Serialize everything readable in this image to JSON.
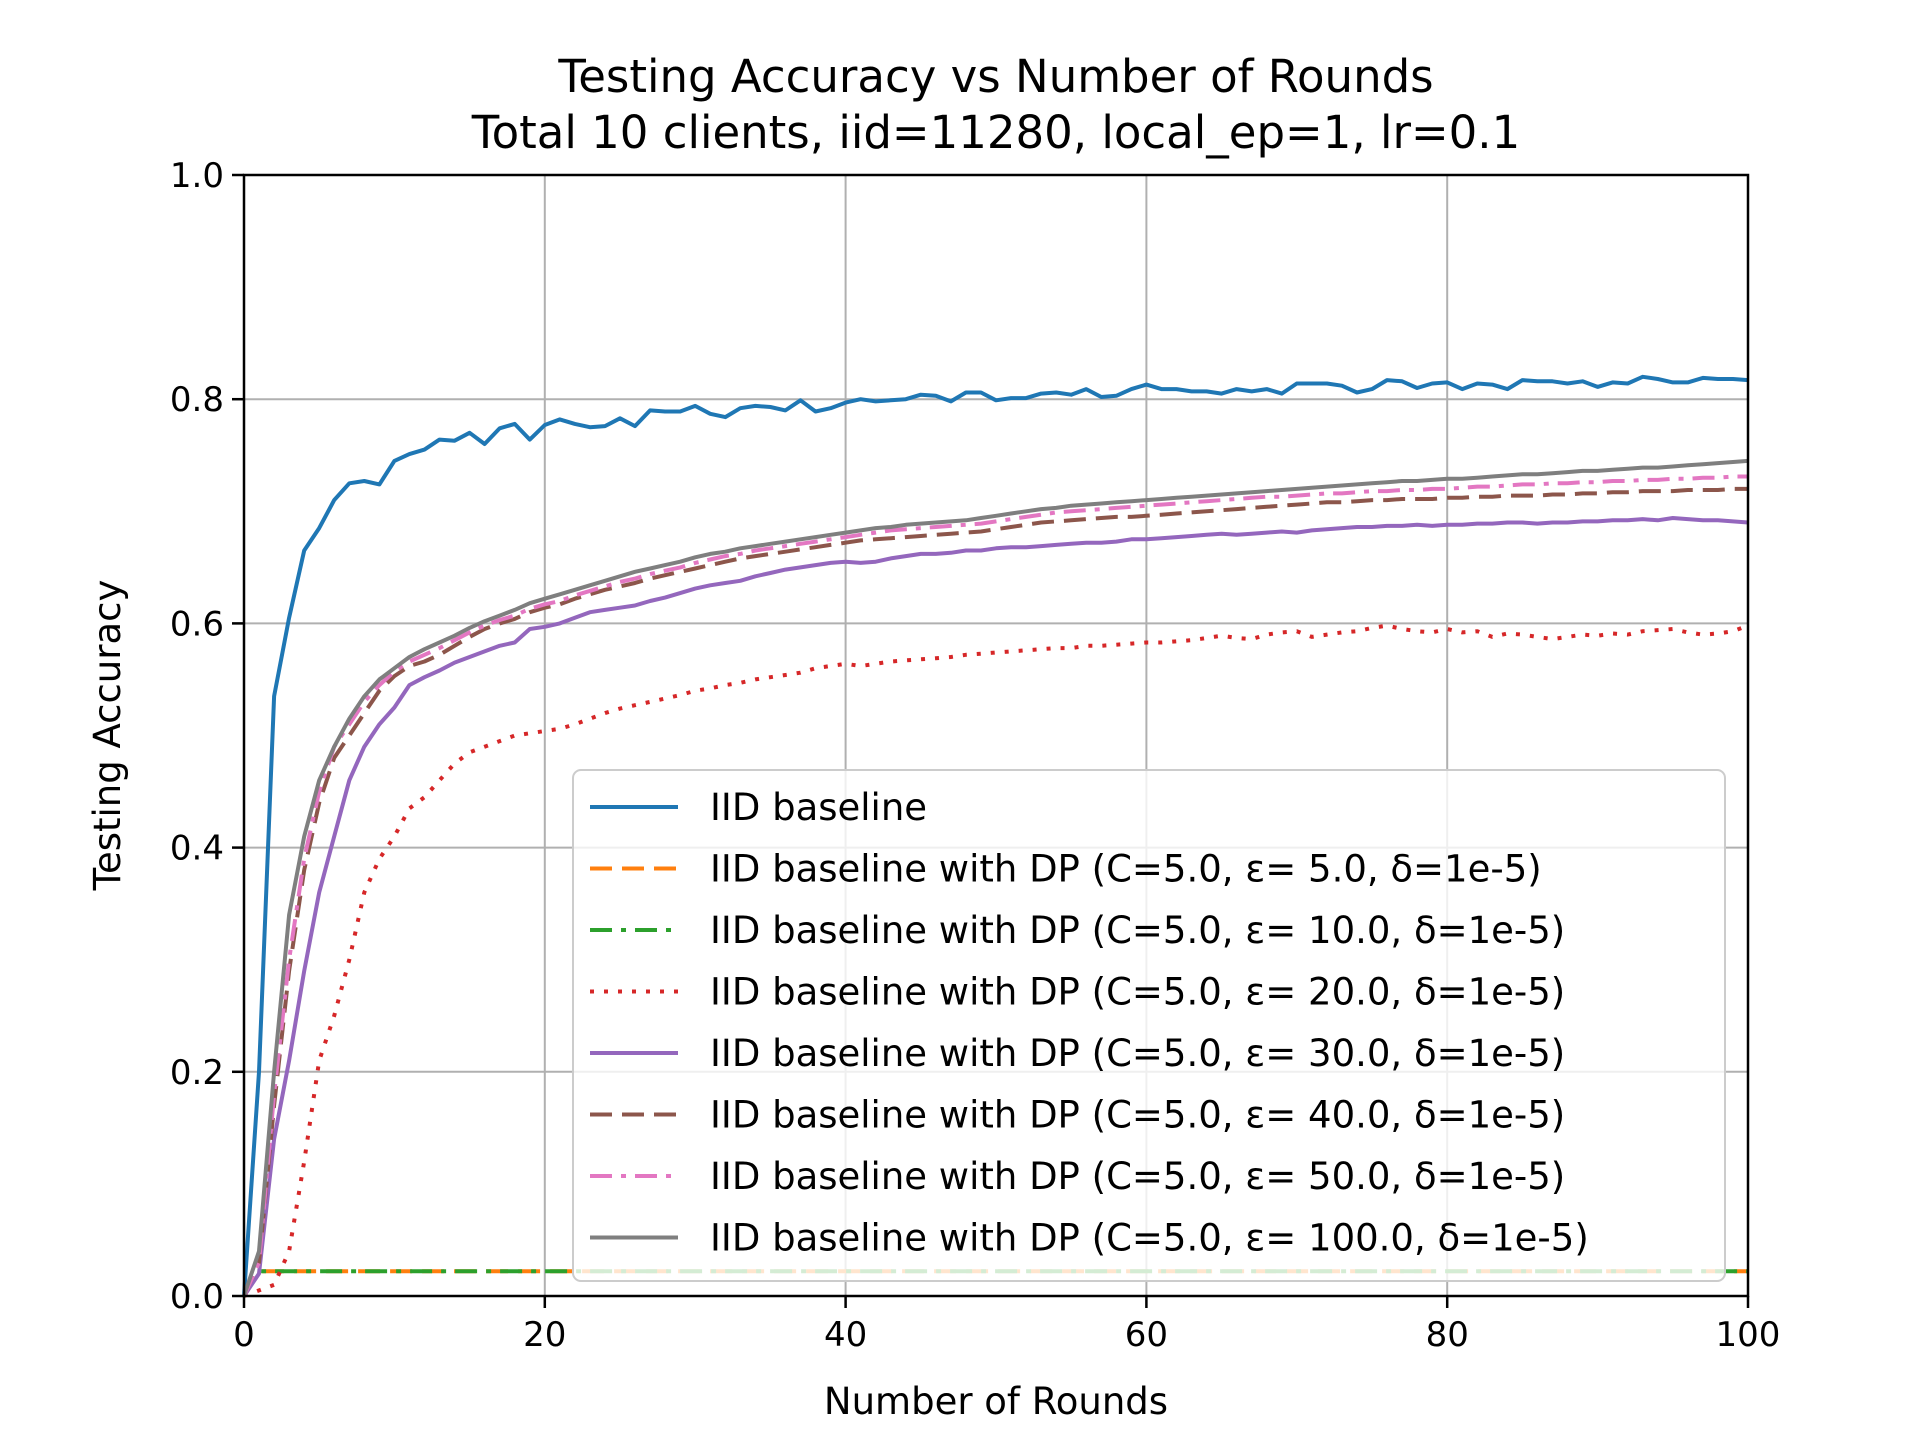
{
  "chart_data": {
    "type": "line",
    "title": "Testing Accuracy vs Number of Rounds",
    "subtitle": "Total 10 clients, iid=11280, local_ep=1, lr=0.1",
    "xlabel": "Number of Rounds",
    "ylabel": "Testing Accuracy",
    "xlim": [
      0,
      100
    ],
    "ylim": [
      0.0,
      1.0
    ],
    "xticks": [
      "0",
      "20",
      "40",
      "60",
      "80",
      "100"
    ],
    "yticks": [
      "0.0",
      "0.2",
      "0.4",
      "0.6",
      "0.8",
      "1.0"
    ],
    "grid": true,
    "legend_position": "lower-right",
    "x": [
      0,
      1,
      2,
      3,
      4,
      5,
      6,
      7,
      8,
      9,
      10,
      11,
      12,
      13,
      14,
      15,
      16,
      17,
      18,
      19,
      20,
      21,
      22,
      23,
      24,
      25,
      26,
      27,
      28,
      29,
      30,
      31,
      32,
      33,
      34,
      35,
      36,
      37,
      38,
      39,
      40,
      41,
      42,
      43,
      44,
      45,
      46,
      47,
      48,
      49,
      50,
      51,
      52,
      53,
      54,
      55,
      56,
      57,
      58,
      59,
      60,
      61,
      62,
      63,
      64,
      65,
      66,
      67,
      68,
      69,
      70,
      71,
      72,
      73,
      74,
      75,
      76,
      77,
      78,
      79,
      80,
      81,
      82,
      83,
      84,
      85,
      86,
      87,
      88,
      89,
      90,
      91,
      92,
      93,
      94,
      95,
      96,
      97,
      98,
      99,
      100
    ],
    "series": [
      {
        "name": "IID baseline",
        "color": "#1f77b4",
        "dash": "solid",
        "values": [
          0.0,
          0.2,
          0.535,
          0.605,
          0.665,
          0.685,
          0.71,
          0.725,
          0.727,
          0.724,
          0.745,
          0.751,
          0.755,
          0.764,
          0.763,
          0.77,
          0.76,
          0.774,
          0.778,
          0.764,
          0.777,
          0.782,
          0.778,
          0.775,
          0.776,
          0.783,
          0.776,
          0.79,
          0.789,
          0.789,
          0.794,
          0.787,
          0.784,
          0.792,
          0.794,
          0.793,
          0.79,
          0.799,
          0.789,
          0.792,
          0.797,
          0.8,
          0.798,
          0.799,
          0.8,
          0.804,
          0.803,
          0.798,
          0.806,
          0.806,
          0.799,
          0.801,
          0.801,
          0.805,
          0.806,
          0.804,
          0.809,
          0.802,
          0.803,
          0.809,
          0.813,
          0.809,
          0.809,
          0.807,
          0.807,
          0.805,
          0.809,
          0.807,
          0.809,
          0.805,
          0.814,
          0.814,
          0.814,
          0.812,
          0.806,
          0.809,
          0.817,
          0.816,
          0.81,
          0.814,
          0.815,
          0.809,
          0.814,
          0.813,
          0.809,
          0.817,
          0.816,
          0.816,
          0.814,
          0.816,
          0.811,
          0.815,
          0.814,
          0.82,
          0.818,
          0.815,
          0.815,
          0.819,
          0.818,
          0.818,
          0.817
        ]
      },
      {
        "name": "IID baseline with DP (C=5.0, ε= 5.0, δ=1e-5)",
        "color": "#ff7f0e",
        "dash": "dashed",
        "values": [
          0.0,
          0.022,
          0.022,
          0.022,
          0.022,
          0.022,
          0.022,
          0.022,
          0.022,
          0.022,
          0.022,
          0.022,
          0.022,
          0.022,
          0.022,
          0.022,
          0.022,
          0.022,
          0.022,
          0.022,
          0.022,
          0.022,
          0.022,
          0.022,
          0.022,
          0.022,
          0.022,
          0.022,
          0.022,
          0.022,
          0.022,
          0.022,
          0.022,
          0.022,
          0.022,
          0.022,
          0.022,
          0.022,
          0.022,
          0.022,
          0.022,
          0.022,
          0.022,
          0.022,
          0.022,
          0.022,
          0.022,
          0.022,
          0.022,
          0.022,
          0.022,
          0.022,
          0.022,
          0.022,
          0.022,
          0.022,
          0.022,
          0.022,
          0.022,
          0.022,
          0.022,
          0.022,
          0.022,
          0.022,
          0.022,
          0.022,
          0.022,
          0.022,
          0.022,
          0.022,
          0.022,
          0.022,
          0.022,
          0.022,
          0.022,
          0.022,
          0.022,
          0.022,
          0.022,
          0.022,
          0.022,
          0.022,
          0.022,
          0.022,
          0.022,
          0.022,
          0.022,
          0.022,
          0.022,
          0.022,
          0.022,
          0.022,
          0.022,
          0.022,
          0.022,
          0.022,
          0.022,
          0.022,
          0.022,
          0.022,
          0.022
        ]
      },
      {
        "name": "IID baseline with DP (C=5.0, ε= 10.0, δ=1e-5)",
        "color": "#2ca02c",
        "dash": "dashdot",
        "values": [
          0.0,
          0.022,
          0.022,
          0.022,
          0.022,
          0.022,
          0.022,
          0.022,
          0.022,
          0.022,
          0.022,
          0.022,
          0.022,
          0.022,
          0.022,
          0.022,
          0.022,
          0.022,
          0.022,
          0.022,
          0.022,
          0.022,
          0.022,
          0.022,
          0.022,
          0.022,
          0.022,
          0.022,
          0.022,
          0.022,
          0.022,
          0.022,
          0.022,
          0.022,
          0.022,
          0.022,
          0.022,
          0.022,
          0.022,
          0.022,
          0.022,
          0.022,
          0.022,
          0.022,
          0.022,
          0.022,
          0.022,
          0.022,
          0.022,
          0.022,
          0.022,
          0.022,
          0.022,
          0.022,
          0.022,
          0.022,
          0.022,
          0.022,
          0.022,
          0.022,
          0.022,
          0.022,
          0.022,
          0.022,
          0.022,
          0.022,
          0.022,
          0.022,
          0.022,
          0.022,
          0.022,
          0.022,
          0.022,
          0.022,
          0.022,
          0.022,
          0.022,
          0.022,
          0.022,
          0.022,
          0.022,
          0.022,
          0.022,
          0.022,
          0.022,
          0.022,
          0.022,
          0.022,
          0.022,
          0.022,
          0.022,
          0.022,
          0.022,
          0.022,
          0.022,
          0.022,
          0.022,
          0.022,
          0.022,
          0.022,
          0.022
        ]
      },
      {
        "name": "IID baseline with DP (C=5.0, ε= 20.0, δ=1e-5)",
        "color": "#d62728",
        "dash": "dotted",
        "values": [
          0.0,
          0.005,
          0.01,
          0.04,
          0.12,
          0.21,
          0.25,
          0.3,
          0.36,
          0.39,
          0.41,
          0.435,
          0.445,
          0.46,
          0.475,
          0.485,
          0.49,
          0.495,
          0.5,
          0.502,
          0.504,
          0.506,
          0.51,
          0.515,
          0.52,
          0.524,
          0.527,
          0.53,
          0.533,
          0.536,
          0.54,
          0.542,
          0.545,
          0.547,
          0.55,
          0.552,
          0.554,
          0.556,
          0.56,
          0.562,
          0.564,
          0.562,
          0.564,
          0.566,
          0.567,
          0.568,
          0.569,
          0.57,
          0.572,
          0.573,
          0.574,
          0.575,
          0.576,
          0.577,
          0.578,
          0.578,
          0.58,
          0.58,
          0.581,
          0.582,
          0.583,
          0.583,
          0.584,
          0.585,
          0.587,
          0.589,
          0.587,
          0.586,
          0.59,
          0.592,
          0.593,
          0.588,
          0.59,
          0.592,
          0.593,
          0.596,
          0.598,
          0.595,
          0.593,
          0.592,
          0.595,
          0.592,
          0.593,
          0.588,
          0.591,
          0.59,
          0.588,
          0.586,
          0.588,
          0.59,
          0.589,
          0.591,
          0.59,
          0.593,
          0.594,
          0.595,
          0.592,
          0.59,
          0.591,
          0.593,
          0.598
        ]
      },
      {
        "name": "IID baseline with DP (C=5.0, ε= 30.0, δ=1e-5)",
        "color": "#9467bd",
        "dash": "solid",
        "values": [
          0.0,
          0.02,
          0.14,
          0.21,
          0.29,
          0.36,
          0.41,
          0.46,
          0.49,
          0.51,
          0.525,
          0.545,
          0.552,
          0.558,
          0.565,
          0.57,
          0.575,
          0.58,
          0.583,
          0.595,
          0.597,
          0.6,
          0.605,
          0.61,
          0.612,
          0.614,
          0.616,
          0.62,
          0.623,
          0.627,
          0.631,
          0.634,
          0.636,
          0.638,
          0.642,
          0.645,
          0.648,
          0.65,
          0.652,
          0.654,
          0.655,
          0.654,
          0.655,
          0.658,
          0.66,
          0.662,
          0.662,
          0.663,
          0.665,
          0.665,
          0.667,
          0.668,
          0.668,
          0.669,
          0.67,
          0.671,
          0.672,
          0.672,
          0.673,
          0.675,
          0.675,
          0.676,
          0.677,
          0.678,
          0.679,
          0.68,
          0.679,
          0.68,
          0.681,
          0.682,
          0.681,
          0.683,
          0.684,
          0.685,
          0.686,
          0.686,
          0.687,
          0.687,
          0.688,
          0.687,
          0.688,
          0.688,
          0.689,
          0.689,
          0.69,
          0.69,
          0.689,
          0.69,
          0.69,
          0.691,
          0.691,
          0.692,
          0.692,
          0.693,
          0.692,
          0.694,
          0.693,
          0.692,
          0.692,
          0.691,
          0.69
        ]
      },
      {
        "name": "IID baseline with DP (C=5.0, ε= 40.0, δ=1e-5)",
        "color": "#8c564b",
        "dash": "dashed",
        "values": [
          0.0,
          0.03,
          0.17,
          0.29,
          0.38,
          0.44,
          0.48,
          0.5,
          0.52,
          0.54,
          0.553,
          0.562,
          0.566,
          0.572,
          0.58,
          0.588,
          0.595,
          0.6,
          0.604,
          0.61,
          0.614,
          0.617,
          0.622,
          0.626,
          0.63,
          0.633,
          0.636,
          0.64,
          0.643,
          0.646,
          0.649,
          0.652,
          0.655,
          0.658,
          0.66,
          0.662,
          0.664,
          0.666,
          0.668,
          0.67,
          0.672,
          0.674,
          0.675,
          0.676,
          0.677,
          0.678,
          0.679,
          0.68,
          0.681,
          0.682,
          0.684,
          0.686,
          0.688,
          0.69,
          0.691,
          0.692,
          0.693,
          0.694,
          0.695,
          0.695,
          0.696,
          0.697,
          0.698,
          0.699,
          0.7,
          0.701,
          0.702,
          0.703,
          0.704,
          0.705,
          0.706,
          0.707,
          0.708,
          0.708,
          0.709,
          0.71,
          0.71,
          0.711,
          0.711,
          0.711,
          0.712,
          0.712,
          0.713,
          0.713,
          0.714,
          0.714,
          0.714,
          0.715,
          0.715,
          0.716,
          0.716,
          0.717,
          0.717,
          0.718,
          0.718,
          0.718,
          0.719,
          0.719,
          0.719,
          0.72,
          0.72
        ]
      },
      {
        "name": "IID baseline with DP (C=5.0, ε= 50.0, δ=1e-5)",
        "color": "#e377c2",
        "dash": "dashdot",
        "values": [
          0.0,
          0.03,
          0.18,
          0.3,
          0.39,
          0.45,
          0.49,
          0.51,
          0.53,
          0.545,
          0.557,
          0.566,
          0.572,
          0.578,
          0.585,
          0.592,
          0.598,
          0.603,
          0.607,
          0.613,
          0.617,
          0.62,
          0.625,
          0.629,
          0.633,
          0.637,
          0.64,
          0.644,
          0.647,
          0.65,
          0.654,
          0.657,
          0.66,
          0.662,
          0.665,
          0.667,
          0.669,
          0.671,
          0.673,
          0.675,
          0.677,
          0.679,
          0.681,
          0.683,
          0.684,
          0.685,
          0.686,
          0.687,
          0.688,
          0.689,
          0.691,
          0.693,
          0.695,
          0.697,
          0.699,
          0.7,
          0.701,
          0.702,
          0.703,
          0.704,
          0.705,
          0.706,
          0.707,
          0.708,
          0.709,
          0.71,
          0.711,
          0.712,
          0.713,
          0.713,
          0.714,
          0.715,
          0.716,
          0.716,
          0.717,
          0.718,
          0.718,
          0.719,
          0.719,
          0.72,
          0.72,
          0.721,
          0.722,
          0.722,
          0.723,
          0.724,
          0.724,
          0.725,
          0.725,
          0.726,
          0.726,
          0.727,
          0.727,
          0.728,
          0.728,
          0.729,
          0.729,
          0.73,
          0.73,
          0.731,
          0.731
        ]
      },
      {
        "name": "IID baseline with DP (C=5.0, ε= 100.0, δ=1e-5)",
        "color": "#7f7f7f",
        "dash": "solid",
        "values": [
          0.0,
          0.04,
          0.2,
          0.34,
          0.41,
          0.46,
          0.49,
          0.515,
          0.535,
          0.55,
          0.56,
          0.57,
          0.577,
          0.583,
          0.589,
          0.596,
          0.602,
          0.607,
          0.612,
          0.618,
          0.622,
          0.626,
          0.63,
          0.634,
          0.638,
          0.642,
          0.646,
          0.649,
          0.652,
          0.655,
          0.659,
          0.662,
          0.664,
          0.667,
          0.669,
          0.671,
          0.673,
          0.675,
          0.677,
          0.679,
          0.681,
          0.683,
          0.685,
          0.686,
          0.688,
          0.689,
          0.69,
          0.691,
          0.692,
          0.694,
          0.696,
          0.698,
          0.7,
          0.702,
          0.703,
          0.705,
          0.706,
          0.707,
          0.708,
          0.709,
          0.71,
          0.711,
          0.712,
          0.713,
          0.714,
          0.715,
          0.716,
          0.717,
          0.718,
          0.719,
          0.72,
          0.721,
          0.722,
          0.723,
          0.724,
          0.725,
          0.726,
          0.727,
          0.727,
          0.728,
          0.729,
          0.729,
          0.73,
          0.731,
          0.732,
          0.733,
          0.733,
          0.734,
          0.735,
          0.736,
          0.736,
          0.737,
          0.738,
          0.739,
          0.739,
          0.74,
          0.741,
          0.742,
          0.743,
          0.744,
          0.745
        ]
      }
    ]
  }
}
